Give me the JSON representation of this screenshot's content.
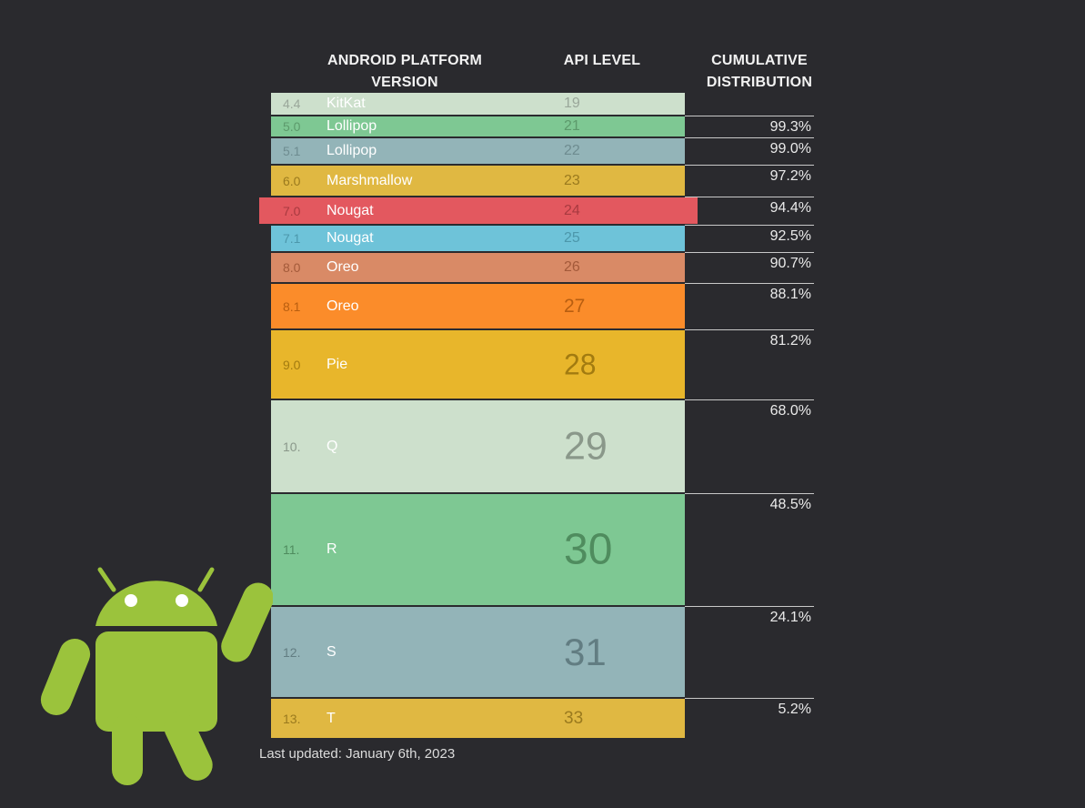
{
  "headers": {
    "platform_line1": "ANDROID PLATFORM",
    "platform_line2": "VERSION",
    "api": "API LEVEL",
    "cumulative_line1": "CUMULATIVE",
    "cumulative_line2": "DISTRIBUTION"
  },
  "footer": "Last updated: January 6th, 2023",
  "mascot_icon": "android-robot-icon",
  "colors": {
    "background": "#2a2a2e",
    "mascot": "#9bc33c"
  },
  "chart_data": {
    "type": "table",
    "columns": [
      "ANDROID PLATFORM VERSION",
      "API LEVEL",
      "CUMULATIVE DISTRIBUTION"
    ],
    "rows": [
      {
        "version": "4.4",
        "name": "KitKat",
        "api": "19",
        "cumulative": "",
        "share": 0.7,
        "color": "#cde0cc",
        "text": "#9aa79a",
        "highlight": false
      },
      {
        "version": "5.0",
        "name": "Lollipop",
        "api": "21",
        "cumulative": "99.3%",
        "share": 0.3,
        "color": "#7ec893",
        "text": "#5d9a6c",
        "highlight": false
      },
      {
        "version": "5.1",
        "name": "Lollipop",
        "api": "22",
        "cumulative": "99.0%",
        "share": 1.8,
        "color": "#93b4b8",
        "text": "#6e8c90",
        "highlight": false
      },
      {
        "version": "6.0",
        "name": "Marshmallow",
        "api": "23",
        "cumulative": "97.2%",
        "share": 2.8,
        "color": "#e0b842",
        "text": "#9a7a1e",
        "highlight": false
      },
      {
        "version": "7.0",
        "name": "Nougat",
        "api": "24",
        "cumulative": "94.4%",
        "share": 1.9,
        "color": "#e3585f",
        "text": "#a83a40",
        "highlight": true
      },
      {
        "version": "7.1",
        "name": "Nougat",
        "api": "25",
        "cumulative": "92.5%",
        "share": 1.8,
        "color": "#6ec3d9",
        "text": "#4c97ab",
        "highlight": false
      },
      {
        "version": "8.0",
        "name": "Oreo",
        "api": "26",
        "cumulative": "90.7%",
        "share": 2.6,
        "color": "#d98a66",
        "text": "#a35a3a",
        "highlight": false
      },
      {
        "version": "8.1",
        "name": "Oreo",
        "api": "27",
        "cumulative": "88.1%",
        "share": 6.9,
        "color": "#fb8c2a",
        "text": "#b85e10",
        "highlight": false
      },
      {
        "version": "9.0",
        "name": "Pie",
        "api": "28",
        "cumulative": "81.2%",
        "share": 13.2,
        "color": "#e8b62b",
        "text": "#a27b10",
        "highlight": false
      },
      {
        "version": "10.",
        "name": "Q",
        "api": "29",
        "cumulative": "68.0%",
        "share": 19.5,
        "color": "#cde0cc",
        "text": "#8a988a",
        "highlight": false
      },
      {
        "version": "11.",
        "name": "R",
        "api": "30",
        "cumulative": "48.5%",
        "share": 24.4,
        "color": "#7ec893",
        "text": "#4f8c5e",
        "highlight": false
      },
      {
        "version": "12.",
        "name": "S",
        "api": "31",
        "cumulative": "24.1%",
        "share": 18.9,
        "color": "#93b4b8",
        "text": "#627d82",
        "highlight": false
      },
      {
        "version": "13.",
        "name": "T",
        "api": "33",
        "cumulative": "5.2%",
        "share": 5.2,
        "color": "#e0b842",
        "text": "#9a7a1e",
        "highlight": false
      }
    ]
  }
}
